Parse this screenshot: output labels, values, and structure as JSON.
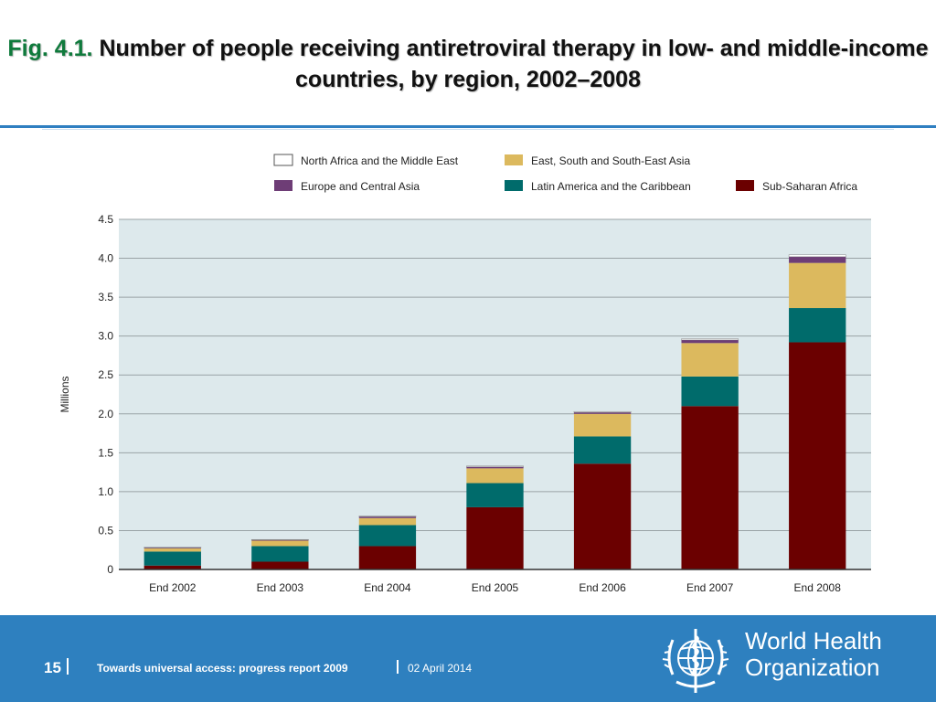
{
  "slide": {
    "fig_label": "Fig. 4.1.",
    "title": "Number of people receiving antiretroviral therapy in low- and middle-income countries, by region, 2002–2008"
  },
  "chart_data": {
    "type": "bar",
    "stacked": true,
    "ylabel": "Millions",
    "ylim": [
      0,
      4.5
    ],
    "yticks": [
      0,
      0.5,
      1.0,
      1.5,
      2.0,
      2.5,
      3.0,
      3.5,
      4.0,
      4.5
    ],
    "ytick_labels": [
      "0",
      "0.5",
      "1.0",
      "1.5",
      "2.0",
      "2.5",
      "3.0",
      "3.5",
      "4.0",
      "4.5"
    ],
    "categories": [
      "End 2002",
      "End 2003",
      "End 2004",
      "End 2005",
      "End 2006",
      "End 2007",
      "End 2008"
    ],
    "grid": "horizontal",
    "legend_position": "top",
    "plot_background": "#dde9ec",
    "series": [
      {
        "name": "Sub-Saharan Africa",
        "color": "#6b0000",
        "values": [
          0.05,
          0.1,
          0.3,
          0.8,
          1.36,
          2.1,
          2.92
        ]
      },
      {
        "name": "Latin America and the Caribbean",
        "color": "#006b6b",
        "values": [
          0.18,
          0.2,
          0.27,
          0.31,
          0.35,
          0.38,
          0.44
        ]
      },
      {
        "name": "East, South and South-East Asia",
        "color": "#dcb95e",
        "values": [
          0.04,
          0.07,
          0.09,
          0.19,
          0.29,
          0.43,
          0.58
        ]
      },
      {
        "name": "Europe and Central Asia",
        "color": "#6e3d76",
        "values": [
          0.01,
          0.01,
          0.02,
          0.02,
          0.02,
          0.04,
          0.08
        ]
      },
      {
        "name": "North Africa and the Middle East",
        "color": "#ffffff",
        "values": [
          0.005,
          0.005,
          0.006,
          0.01,
          0.01,
          0.015,
          0.025
        ]
      }
    ],
    "legend_order": [
      "North Africa and the Middle East",
      "East, South and South-East Asia",
      "Europe and Central Asia",
      "Latin America and the Caribbean",
      "Sub-Saharan Africa"
    ]
  },
  "footer": {
    "page_number": "15",
    "report_title": "Towards universal access: progress report 2009",
    "date": "02 April 2014",
    "org_name_line1": "World Health",
    "org_name_line2": "Organization",
    "background_color": "#2e80bf"
  },
  "icons": {
    "who_emblem": "who-emblem-icon"
  }
}
